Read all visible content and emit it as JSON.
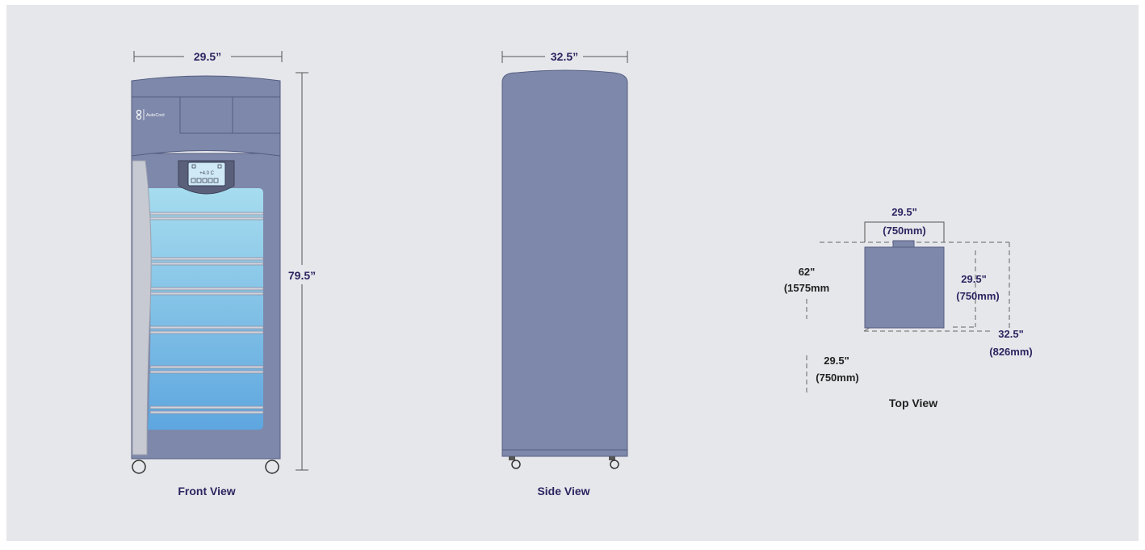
{
  "brand": {
    "name": "AutoCool",
    "logo_icon": "s-logo-icon"
  },
  "display": {
    "temperature": "+4.0 C"
  },
  "front_view": {
    "caption": "Front View",
    "width_label": "29.5”",
    "height_label": "79.5”"
  },
  "side_view": {
    "caption": "Side View",
    "depth_label": "32.5”"
  },
  "top_view": {
    "caption": "Top View",
    "cabinet_width": {
      "in": "29.5\"",
      "mm": "(750mm)"
    },
    "cabinet_depth": {
      "in": "29.5\"",
      "mm": "(750mm)"
    },
    "total_depth": {
      "in": "62\"",
      "mm": "(1575mm"
    },
    "door_swing": {
      "in": "29.5\"",
      "mm": "(750mm)"
    },
    "overall_depth": {
      "in": "32.5\"",
      "mm": "(826mm)"
    }
  },
  "colors": {
    "background": "#e6e7eb",
    "cabinet": "#7d88aa",
    "cabinet_dark": "#555e82",
    "glass_top": "#a6dcee",
    "glass_bottom": "#5ea6df",
    "label": "#2b2560"
  }
}
